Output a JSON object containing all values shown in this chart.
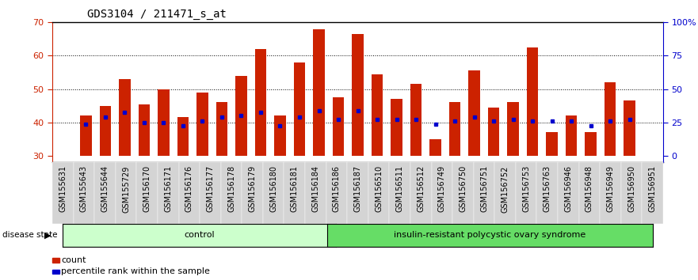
{
  "title": "GDS3104 / 211471_s_at",
  "samples": [
    "GSM155631",
    "GSM155643",
    "GSM155644",
    "GSM155729",
    "GSM156170",
    "GSM156171",
    "GSM156176",
    "GSM156177",
    "GSM156178",
    "GSM156179",
    "GSM156180",
    "GSM156181",
    "GSM156184",
    "GSM156186",
    "GSM156187",
    "GSM156510",
    "GSM156511",
    "GSM156512",
    "GSM156749",
    "GSM156750",
    "GSM156751",
    "GSM156752",
    "GSM156753",
    "GSM156763",
    "GSM156946",
    "GSM156948",
    "GSM156949",
    "GSM156950",
    "GSM156951"
  ],
  "bar_heights": [
    42,
    45,
    53,
    45.5,
    50,
    41.5,
    49,
    46,
    54,
    62,
    42,
    58,
    68,
    47.5,
    66.5,
    54.5,
    47,
    51.5,
    35,
    46,
    55.5,
    44.5,
    46,
    62.5,
    37,
    42,
    37,
    52,
    46.5
  ],
  "percentile_values": [
    39.5,
    41.5,
    43,
    40,
    40,
    39,
    40.5,
    41.5,
    42,
    43,
    39,
    41.5,
    43.5,
    41,
    43.5,
    41,
    41,
    41,
    39.5,
    40.5,
    41.5,
    40.5,
    41,
    40.5,
    40.5,
    40.5,
    39,
    40.5,
    41
  ],
  "bar_color": "#cc2200",
  "percentile_color": "#0000cc",
  "control_count": 13,
  "group_labels": [
    "control",
    "insulin-resistant polycystic ovary syndrome"
  ],
  "group_colors": [
    "#ccffcc",
    "#66dd66"
  ],
  "disease_state_label": "disease state",
  "yticks_left": [
    30,
    40,
    50,
    60,
    70
  ],
  "yticks_right_labels": [
    "0",
    "25",
    "50",
    "75",
    "100%"
  ],
  "ylim": [
    28,
    70
  ],
  "legend_count_label": "count",
  "legend_percentile_label": "percentile rank within the sample",
  "background_color": "#ffffff",
  "title_fontsize": 10,
  "tick_label_fontsize": 7,
  "axis_color_left": "#cc2200",
  "axis_color_right": "#0000cc",
  "grid_yticks": [
    40,
    50,
    60
  ]
}
